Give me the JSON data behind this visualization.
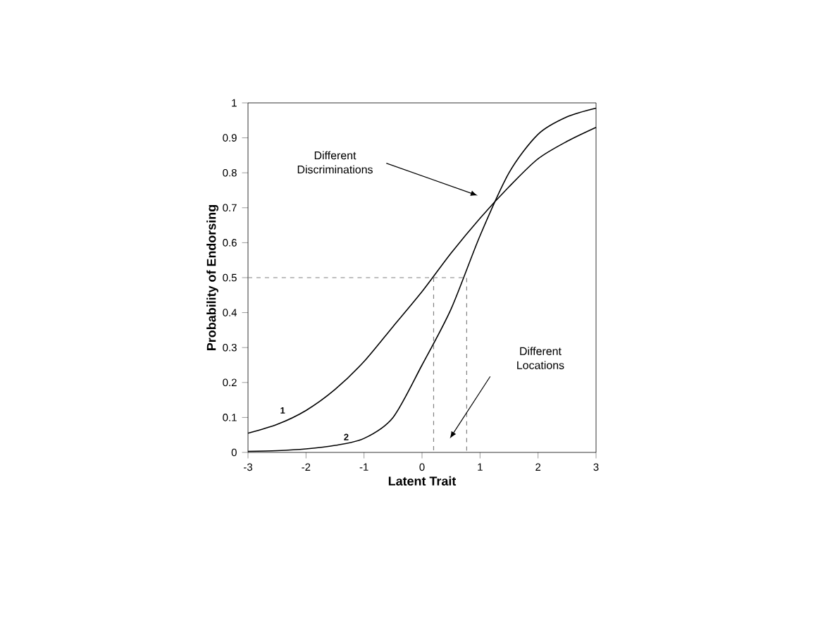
{
  "chart_data": {
    "type": "line",
    "xlabel": "Latent Trait",
    "ylabel": "Probability of Endorsing",
    "xlim": [
      -3,
      3
    ],
    "ylim": [
      0,
      1
    ],
    "xticks": [
      -3,
      -2,
      -1,
      0,
      1,
      2,
      3
    ],
    "yticks": [
      0,
      0.1,
      0.2,
      0.3,
      0.4,
      0.5,
      0.6,
      0.7,
      0.8,
      0.9,
      1
    ],
    "grid": false,
    "marker": "none",
    "series": [
      {
        "name": "1",
        "color": "#000000",
        "line_style": "solid",
        "x": [
          -3,
          -2.5,
          -2,
          -1.5,
          -1,
          -0.5,
          0,
          0.5,
          1,
          1.5,
          2,
          2.5,
          3
        ],
        "values": [
          0.055,
          0.08,
          0.12,
          0.18,
          0.26,
          0.36,
          0.46,
          0.57,
          0.67,
          0.76,
          0.84,
          0.89,
          0.93
        ]
      },
      {
        "name": "2",
        "color": "#000000",
        "line_style": "solid",
        "x": [
          -3,
          -2.5,
          -2,
          -1.5,
          -1,
          -0.5,
          0,
          0.5,
          1,
          1.5,
          2,
          2.5,
          3
        ],
        "values": [
          0.003,
          0.005,
          0.01,
          0.02,
          0.04,
          0.1,
          0.25,
          0.41,
          0.62,
          0.8,
          0.91,
          0.96,
          0.985
        ]
      },
      {
        "color": "#808080",
        "line_style": "dashed",
        "x": [
          -3,
          0.77,
          0.77
        ],
        "values": [
          0.5,
          0.5,
          0
        ]
      },
      {
        "color": "#808080",
        "line_style": "dashed",
        "x": [
          0.2,
          0.2
        ],
        "values": [
          0.5,
          0
        ]
      }
    ],
    "annotations": [
      "Different Discriminations",
      "Different Locations"
    ]
  }
}
